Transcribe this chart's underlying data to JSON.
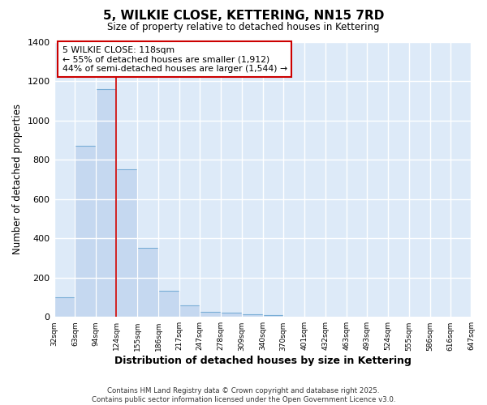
{
  "title": "5, WILKIE CLOSE, KETTERING, NN15 7RD",
  "subtitle": "Size of property relative to detached houses in Kettering",
  "xlabel": "Distribution of detached houses by size in Kettering",
  "ylabel": "Number of detached properties",
  "bar_color": "#c5d8f0",
  "bar_edge_color": "#7aaed6",
  "background_color": "#ddeaf8",
  "fig_background": "#ffffff",
  "grid_color": "#ffffff",
  "bin_edges": [
    32,
    63,
    94,
    124,
    155,
    186,
    217,
    247,
    278,
    309,
    340,
    370,
    401,
    432,
    463,
    493,
    524,
    555,
    586,
    616,
    647
  ],
  "bar_heights": [
    100,
    870,
    1160,
    750,
    350,
    135,
    60,
    27,
    20,
    15,
    8,
    3,
    0,
    0,
    0,
    0,
    0,
    0,
    0,
    0
  ],
  "red_line_x": 124,
  "red_line_color": "#cc0000",
  "annotation_text_line1": "5 WILKIE CLOSE: 118sqm",
  "annotation_text_line2": "← 55% of detached houses are smaller (1,912)",
  "annotation_text_line3": "44% of semi-detached houses are larger (1,544) →",
  "annotation_box_facecolor": "#ffffff",
  "annotation_border_color": "#cc0000",
  "ylim": [
    0,
    1400
  ],
  "yticks": [
    0,
    200,
    400,
    600,
    800,
    1000,
    1200,
    1400
  ],
  "footnote1": "Contains HM Land Registry data © Crown copyright and database right 2025.",
  "footnote2": "Contains public sector information licensed under the Open Government Licence v3.0.",
  "tick_labels": [
    "32sqm",
    "63sqm",
    "94sqm",
    "124sqm",
    "155sqm",
    "186sqm",
    "217sqm",
    "247sqm",
    "278sqm",
    "309sqm",
    "340sqm",
    "370sqm",
    "401sqm",
    "432sqm",
    "463sqm",
    "493sqm",
    "524sqm",
    "555sqm",
    "586sqm",
    "616sqm",
    "647sqm"
  ]
}
